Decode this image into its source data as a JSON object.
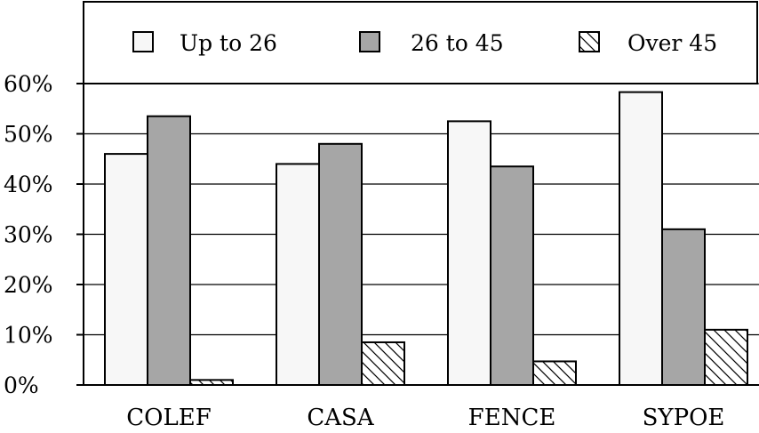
{
  "chart_data": {
    "type": "bar",
    "title": "",
    "xlabel": "",
    "ylabel": "",
    "categories": [
      "COLEF",
      "CASA",
      "FENCE",
      "SYPOE"
    ],
    "series": [
      {
        "name": "Up to 26",
        "values": [
          46,
          44,
          52.5,
          58.3
        ]
      },
      {
        "name": "26 to 45",
        "values": [
          53.5,
          48,
          43.5,
          31
        ]
      },
      {
        "name": "Over 45",
        "values": [
          1,
          8.5,
          4.7,
          11
        ]
      }
    ],
    "ylim": [
      0,
      60
    ],
    "yticks": [
      "0%",
      "10%",
      "20%",
      "30%",
      "40%",
      "50%",
      "60%"
    ],
    "grid": true,
    "legend": "top"
  },
  "colors": {
    "up_to_26": "#f7f7f7",
    "26_to_45": "#a6a6a6",
    "over_45": "hatched"
  }
}
